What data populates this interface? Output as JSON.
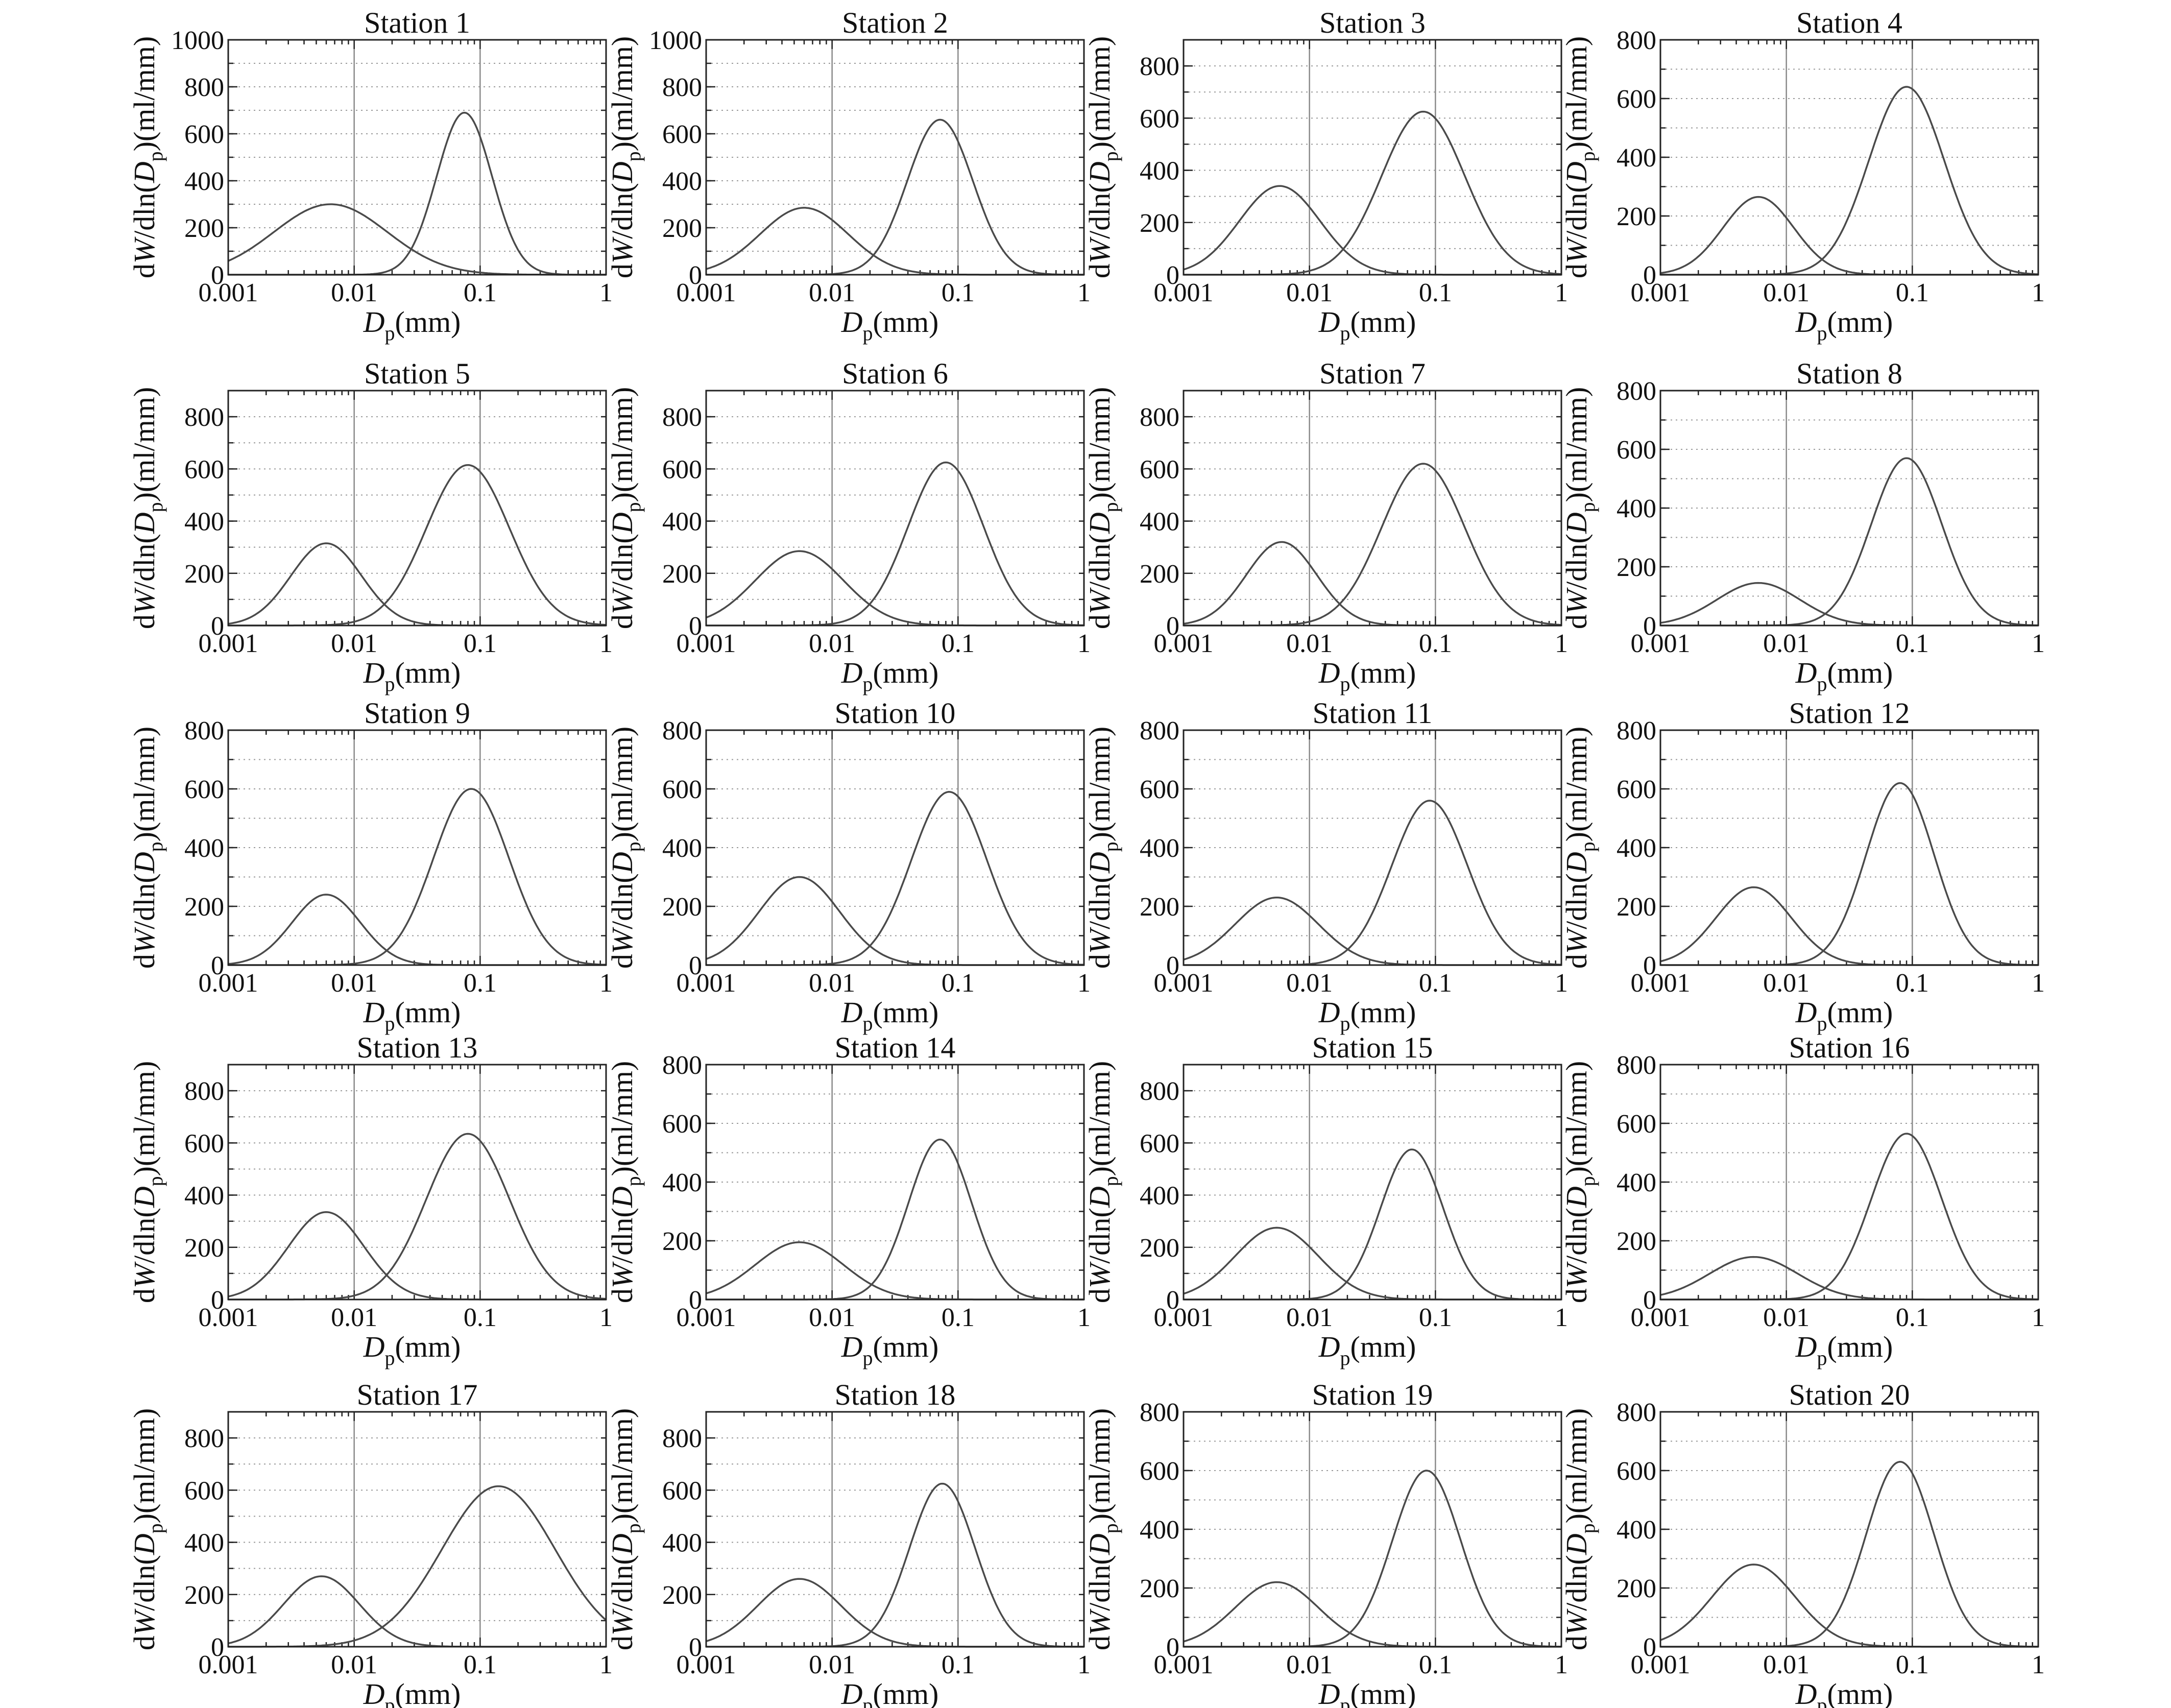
{
  "chart_data": [
    {
      "type": "line",
      "title": "Station 1",
      "xlabel": "D",
      "xlabel_sub": "p",
      "xlabel_unit": "(mm)",
      "ylabel": "dW/dln(D",
      "ylabel_sub": "p",
      "ylabel_end": ")(ml/mm)",
      "xscale": "log",
      "xlim": [
        0.001,
        1
      ],
      "xticks": [
        "0.001",
        "0.01",
        "0.1",
        "1"
      ],
      "ylim": [
        0,
        1000
      ],
      "yticks": [
        "0",
        "200",
        "400",
        "600",
        "800",
        "1000"
      ],
      "grid": true,
      "series": [
        {
          "peak_diameter_mm": 0.0065,
          "peak_value": 300,
          "log10_sigma": 0.45
        },
        {
          "peak_diameter_mm": 0.075,
          "peak_value": 690,
          "log10_sigma": 0.22
        }
      ]
    },
    {
      "type": "line",
      "title": "Station 2",
      "xlabel": "D",
      "xlabel_sub": "p",
      "xlabel_unit": "(mm)",
      "ylabel": "dW/dln(D",
      "ylabel_sub": "p",
      "ylabel_end": ")(ml/mm)",
      "xscale": "log",
      "xlim": [
        0.001,
        1
      ],
      "xticks": [
        "0.001",
        "0.01",
        "0.1",
        "1"
      ],
      "ylim": [
        0,
        1000
      ],
      "yticks": [
        "0",
        "200",
        "400",
        "600",
        "800",
        "1000"
      ],
      "grid": true,
      "series": [
        {
          "peak_diameter_mm": 0.006,
          "peak_value": 285,
          "log10_sigma": 0.35
        },
        {
          "peak_diameter_mm": 0.072,
          "peak_value": 660,
          "log10_sigma": 0.26
        }
      ]
    },
    {
      "type": "line",
      "title": "Station 3",
      "xlabel": "D",
      "xlabel_sub": "p",
      "xlabel_unit": "(mm)",
      "ylabel": "dW/dln(D",
      "ylabel_sub": "p",
      "ylabel_end": ")(ml/mm)",
      "xscale": "log",
      "xlim": [
        0.001,
        1
      ],
      "xticks": [
        "0.001",
        "0.01",
        "0.1",
        "1"
      ],
      "ylim": [
        0,
        900
      ],
      "yticks": [
        "0",
        "200",
        "400",
        "600",
        "800"
      ],
      "grid": true,
      "series": [
        {
          "peak_diameter_mm": 0.0058,
          "peak_value": 340,
          "log10_sigma": 0.32
        },
        {
          "peak_diameter_mm": 0.08,
          "peak_value": 625,
          "log10_sigma": 0.33
        }
      ]
    },
    {
      "type": "line",
      "title": "Station 4",
      "xlabel": "D",
      "xlabel_sub": "p",
      "xlabel_unit": "(mm)",
      "ylabel": "dW/dln(D",
      "ylabel_sub": "p",
      "ylabel_end": ")(ml/mm)",
      "xscale": "log",
      "xlim": [
        0.001,
        1
      ],
      "xticks": [
        "0.001",
        "0.01",
        "0.1",
        "1"
      ],
      "ylim": [
        0,
        800
      ],
      "yticks": [
        "0",
        "200",
        "400",
        "600",
        "800"
      ],
      "grid": true,
      "series": [
        {
          "peak_diameter_mm": 0.006,
          "peak_value": 265,
          "log10_sigma": 0.28
        },
        {
          "peak_diameter_mm": 0.09,
          "peak_value": 640,
          "log10_sigma": 0.3
        }
      ]
    },
    {
      "type": "line",
      "title": "Station 5",
      "xlabel": "D",
      "xlabel_sub": "p",
      "xlabel_unit": "(mm)",
      "ylabel": "dW/dln(D",
      "ylabel_sub": "p",
      "ylabel_end": ")(ml/mm)",
      "xscale": "log",
      "xlim": [
        0.001,
        1
      ],
      "xticks": [
        "0.001",
        "0.01",
        "0.1",
        "1"
      ],
      "ylim": [
        0,
        900
      ],
      "yticks": [
        "0",
        "200",
        "400",
        "600",
        "800"
      ],
      "grid": true,
      "series": [
        {
          "peak_diameter_mm": 0.006,
          "peak_value": 315,
          "log10_sigma": 0.28
        },
        {
          "peak_diameter_mm": 0.08,
          "peak_value": 615,
          "log10_sigma": 0.33
        }
      ]
    },
    {
      "type": "line",
      "title": "Station 6",
      "xlabel": "D",
      "xlabel_sub": "p",
      "xlabel_unit": "(mm)",
      "ylabel": "dW/dln(D",
      "ylabel_sub": "p",
      "ylabel_end": ")(ml/mm)",
      "xscale": "log",
      "xlim": [
        0.001,
        1
      ],
      "xticks": [
        "0.001",
        "0.01",
        "0.1",
        "1"
      ],
      "ylim": [
        0,
        900
      ],
      "yticks": [
        "0",
        "200",
        "400",
        "600",
        "800"
      ],
      "grid": true,
      "series": [
        {
          "peak_diameter_mm": 0.0055,
          "peak_value": 285,
          "log10_sigma": 0.35
        },
        {
          "peak_diameter_mm": 0.08,
          "peak_value": 625,
          "log10_sigma": 0.3
        }
      ]
    },
    {
      "type": "line",
      "title": "Station 7",
      "xlabel": "D",
      "xlabel_sub": "p",
      "xlabel_unit": "(mm)",
      "ylabel": "dW/dln(D",
      "ylabel_sub": "p",
      "ylabel_end": ")(ml/mm)",
      "xscale": "log",
      "xlim": [
        0.001,
        1
      ],
      "xticks": [
        "0.001",
        "0.01",
        "0.1",
        "1"
      ],
      "ylim": [
        0,
        900
      ],
      "yticks": [
        "0",
        "200",
        "400",
        "600",
        "800"
      ],
      "grid": true,
      "series": [
        {
          "peak_diameter_mm": 0.006,
          "peak_value": 320,
          "log10_sigma": 0.28
        },
        {
          "peak_diameter_mm": 0.08,
          "peak_value": 620,
          "log10_sigma": 0.33
        }
      ]
    },
    {
      "type": "line",
      "title": "Station 8",
      "xlabel": "D",
      "xlabel_sub": "p",
      "xlabel_unit": "(mm)",
      "ylabel": "dW/dln(D",
      "ylabel_sub": "p",
      "ylabel_end": ")(ml/mm)",
      "xscale": "log",
      "xlim": [
        0.001,
        1
      ],
      "xticks": [
        "0.001",
        "0.01",
        "0.1",
        "1"
      ],
      "ylim": [
        0,
        800
      ],
      "yticks": [
        "0",
        "200",
        "400",
        "600",
        "800"
      ],
      "grid": true,
      "series": [
        {
          "peak_diameter_mm": 0.006,
          "peak_value": 145,
          "log10_sigma": 0.33
        },
        {
          "peak_diameter_mm": 0.09,
          "peak_value": 570,
          "log10_sigma": 0.28
        }
      ]
    },
    {
      "type": "line",
      "title": "Station 9",
      "xlabel": "D",
      "xlabel_sub": "p",
      "xlabel_unit": "(mm)",
      "ylabel": "dW/dln(D",
      "ylabel_sub": "p",
      "ylabel_end": ")(ml/mm)",
      "xscale": "log",
      "xlim": [
        0.001,
        1
      ],
      "xticks": [
        "0.001",
        "0.01",
        "0.1",
        "1"
      ],
      "ylim": [
        0,
        800
      ],
      "yticks": [
        "0",
        "200",
        "400",
        "600",
        "800"
      ],
      "grid": true,
      "series": [
        {
          "peak_diameter_mm": 0.006,
          "peak_value": 240,
          "log10_sigma": 0.27
        },
        {
          "peak_diameter_mm": 0.085,
          "peak_value": 600,
          "log10_sigma": 0.3
        }
      ]
    },
    {
      "type": "line",
      "title": "Station 10",
      "xlabel": "D",
      "xlabel_sub": "p",
      "xlabel_unit": "(mm)",
      "ylabel": "dW/dln(D",
      "ylabel_sub": "p",
      "ylabel_end": ")(ml/mm)",
      "xscale": "log",
      "xlim": [
        0.001,
        1
      ],
      "xticks": [
        "0.001",
        "0.01",
        "0.1",
        "1"
      ],
      "ylim": [
        0,
        800
      ],
      "yticks": [
        "0",
        "200",
        "400",
        "600",
        "800"
      ],
      "grid": true,
      "series": [
        {
          "peak_diameter_mm": 0.0055,
          "peak_value": 300,
          "log10_sigma": 0.32
        },
        {
          "peak_diameter_mm": 0.085,
          "peak_value": 590,
          "log10_sigma": 0.3
        }
      ]
    },
    {
      "type": "line",
      "title": "Station 11",
      "xlabel": "D",
      "xlabel_sub": "p",
      "xlabel_unit": "(mm)",
      "ylabel": "dW/dln(D",
      "ylabel_sub": "p",
      "ylabel_end": ")(ml/mm)",
      "xscale": "log",
      "xlim": [
        0.001,
        1
      ],
      "xticks": [
        "0.001",
        "0.01",
        "0.1",
        "1"
      ],
      "ylim": [
        0,
        800
      ],
      "yticks": [
        "0",
        "200",
        "400",
        "600",
        "800"
      ],
      "grid": true,
      "series": [
        {
          "peak_diameter_mm": 0.0055,
          "peak_value": 230,
          "log10_sigma": 0.33
        },
        {
          "peak_diameter_mm": 0.09,
          "peak_value": 560,
          "log10_sigma": 0.3
        }
      ]
    },
    {
      "type": "line",
      "title": "Station 12",
      "xlabel": "D",
      "xlabel_sub": "p",
      "xlabel_unit": "(mm)",
      "ylabel": "dW/dln(D",
      "ylabel_sub": "p",
      "ylabel_end": ")(ml/mm)",
      "xscale": "log",
      "xlim": [
        0.001,
        1
      ],
      "xticks": [
        "0.001",
        "0.01",
        "0.1",
        "1"
      ],
      "ylim": [
        0,
        800
      ],
      "yticks": [
        "0",
        "200",
        "400",
        "600",
        "800"
      ],
      "grid": true,
      "series": [
        {
          "peak_diameter_mm": 0.0055,
          "peak_value": 265,
          "log10_sigma": 0.3
        },
        {
          "peak_diameter_mm": 0.08,
          "peak_value": 620,
          "log10_sigma": 0.27
        }
      ]
    },
    {
      "type": "line",
      "title": "Station 13",
      "xlabel": "D",
      "xlabel_sub": "p",
      "xlabel_unit": "(mm)",
      "ylabel": "dW/dln(D",
      "ylabel_sub": "p",
      "ylabel_end": ")(ml/mm)",
      "xscale": "log",
      "xlim": [
        0.001,
        1
      ],
      "xticks": [
        "0.001",
        "0.01",
        "0.1",
        "1"
      ],
      "ylim": [
        0,
        900
      ],
      "yticks": [
        "0",
        "200",
        "400",
        "600",
        "800"
      ],
      "grid": true,
      "series": [
        {
          "peak_diameter_mm": 0.006,
          "peak_value": 335,
          "log10_sigma": 0.3
        },
        {
          "peak_diameter_mm": 0.08,
          "peak_value": 635,
          "log10_sigma": 0.33
        }
      ]
    },
    {
      "type": "line",
      "title": "Station 14",
      "xlabel": "D",
      "xlabel_sub": "p",
      "xlabel_unit": "(mm)",
      "ylabel": "dW/dln(D",
      "ylabel_sub": "p",
      "ylabel_end": ")(ml/mm)",
      "xscale": "log",
      "xlim": [
        0.001,
        1
      ],
      "xticks": [
        "0.001",
        "0.01",
        "0.1",
        "1"
      ],
      "ylim": [
        0,
        800
      ],
      "yticks": [
        "0",
        "200",
        "400",
        "600",
        "800"
      ],
      "grid": true,
      "series": [
        {
          "peak_diameter_mm": 0.0055,
          "peak_value": 195,
          "log10_sigma": 0.35
        },
        {
          "peak_diameter_mm": 0.072,
          "peak_value": 545,
          "log10_sigma": 0.25
        }
      ]
    },
    {
      "type": "line",
      "title": "Station 15",
      "xlabel": "D",
      "xlabel_sub": "p",
      "xlabel_unit": "(mm)",
      "ylabel": "dW/dln(D",
      "ylabel_sub": "p",
      "ylabel_end": ")(ml/mm)",
      "xscale": "log",
      "xlim": [
        0.001,
        1
      ],
      "xticks": [
        "0.001",
        "0.01",
        "0.1",
        "1"
      ],
      "ylim": [
        0,
        900
      ],
      "yticks": [
        "0",
        "200",
        "400",
        "600",
        "800"
      ],
      "grid": true,
      "series": [
        {
          "peak_diameter_mm": 0.0055,
          "peak_value": 275,
          "log10_sigma": 0.33
        },
        {
          "peak_diameter_mm": 0.065,
          "peak_value": 575,
          "log10_sigma": 0.25
        }
      ]
    },
    {
      "type": "line",
      "title": "Station 16",
      "xlabel": "D",
      "xlabel_sub": "p",
      "xlabel_unit": "(mm)",
      "ylabel": "dW/dln(D",
      "ylabel_sub": "p",
      "ylabel_end": ")(ml/mm)",
      "xscale": "log",
      "xlim": [
        0.001,
        1
      ],
      "xticks": [
        "0.001",
        "0.01",
        "0.1",
        "1"
      ],
      "ylim": [
        0,
        800
      ],
      "yticks": [
        "0",
        "200",
        "400",
        "600",
        "800"
      ],
      "grid": true,
      "series": [
        {
          "peak_diameter_mm": 0.0055,
          "peak_value": 145,
          "log10_sigma": 0.35
        },
        {
          "peak_diameter_mm": 0.09,
          "peak_value": 565,
          "log10_sigma": 0.28
        }
      ]
    },
    {
      "type": "line",
      "title": "Station 17",
      "xlabel": "D",
      "xlabel_sub": "p",
      "xlabel_unit": "(mm)",
      "ylabel": "dW/dln(D",
      "ylabel_sub": "p",
      "ylabel_end": ")(ml/mm)",
      "xscale": "log",
      "xlim": [
        0.001,
        1
      ],
      "xticks": [
        "0.001",
        "0.01",
        "0.1",
        "1"
      ],
      "ylim": [
        0,
        900
      ],
      "yticks": [
        "0",
        "200",
        "400",
        "600",
        "800"
      ],
      "grid": true,
      "series": [
        {
          "peak_diameter_mm": 0.0055,
          "peak_value": 270,
          "log10_sigma": 0.3
        },
        {
          "peak_diameter_mm": 0.14,
          "peak_value": 615,
          "log10_sigma": 0.45
        }
      ]
    },
    {
      "type": "line",
      "title": "Station 18",
      "xlabel": "D",
      "xlabel_sub": "p",
      "xlabel_unit": "(mm)",
      "ylabel": "dW/dln(D",
      "ylabel_sub": "p",
      "ylabel_end": ")(ml/mm)",
      "xscale": "log",
      "xlim": [
        0.001,
        1
      ],
      "xticks": [
        "0.001",
        "0.01",
        "0.1",
        "1"
      ],
      "ylim": [
        0,
        900
      ],
      "yticks": [
        "0",
        "200",
        "400",
        "600",
        "800"
      ],
      "grid": true,
      "series": [
        {
          "peak_diameter_mm": 0.0055,
          "peak_value": 260,
          "log10_sigma": 0.33
        },
        {
          "peak_diameter_mm": 0.075,
          "peak_value": 625,
          "log10_sigma": 0.26
        }
      ]
    },
    {
      "type": "line",
      "title": "Station 19",
      "xlabel": "D",
      "xlabel_sub": "p",
      "xlabel_unit": "(mm)",
      "ylabel": "dW/dln(D",
      "ylabel_sub": "p",
      "ylabel_end": ")(ml/mm)",
      "xscale": "log",
      "xlim": [
        0.001,
        1
      ],
      "xticks": [
        "0.001",
        "0.01",
        "0.1",
        "1"
      ],
      "ylim": [
        0,
        800
      ],
      "yticks": [
        "0",
        "200",
        "400",
        "600",
        "800"
      ],
      "grid": true,
      "series": [
        {
          "peak_diameter_mm": 0.0055,
          "peak_value": 220,
          "log10_sigma": 0.33
        },
        {
          "peak_diameter_mm": 0.085,
          "peak_value": 600,
          "log10_sigma": 0.27
        }
      ]
    },
    {
      "type": "line",
      "title": "Station 20",
      "xlabel": "D",
      "xlabel_sub": "p",
      "xlabel_unit": "(mm)",
      "ylabel": "dW/dln(D",
      "ylabel_sub": "p",
      "ylabel_end": ")(ml/mm)",
      "xscale": "log",
      "xlim": [
        0.001,
        1
      ],
      "xticks": [
        "0.001",
        "0.01",
        "0.1",
        "1"
      ],
      "ylim": [
        0,
        800
      ],
      "yticks": [
        "0",
        "200",
        "400",
        "600",
        "800"
      ],
      "grid": true,
      "series": [
        {
          "peak_diameter_mm": 0.0055,
          "peak_value": 280,
          "log10_sigma": 0.33
        },
        {
          "peak_diameter_mm": 0.08,
          "peak_value": 630,
          "log10_sigma": 0.27
        }
      ]
    }
  ]
}
